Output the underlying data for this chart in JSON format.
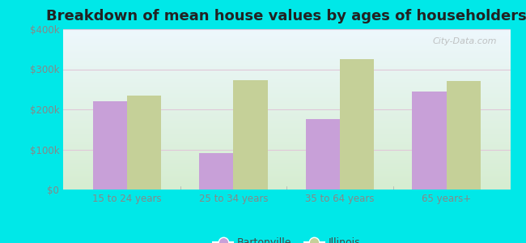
{
  "title": "Breakdown of mean house values by ages of householders",
  "categories": [
    "15 to 24 years",
    "25 to 34 years",
    "35 to 64 years",
    "65 years+"
  ],
  "bartonville": [
    220000,
    90000,
    175000,
    245000
  ],
  "illinois": [
    235000,
    273000,
    325000,
    270000
  ],
  "bar_color_bartonville": "#c8a0d8",
  "bar_color_illinois": "#c5d098",
  "ylim": [
    0,
    400000
  ],
  "yticks": [
    0,
    100000,
    200000,
    300000,
    400000
  ],
  "ytick_labels": [
    "$0",
    "$100k",
    "$200k",
    "$300k",
    "$400k"
  ],
  "background_outer": "#00e8e8",
  "background_inner_top": "#e0f0f8",
  "background_inner_bottom": "#d8efd0",
  "title_fontsize": 13,
  "legend_labels": [
    "Bartonville",
    "Illinois"
  ],
  "watermark": "City-Data.com",
  "grid_color": "#e8d0e0",
  "tick_label_color": "#888888"
}
